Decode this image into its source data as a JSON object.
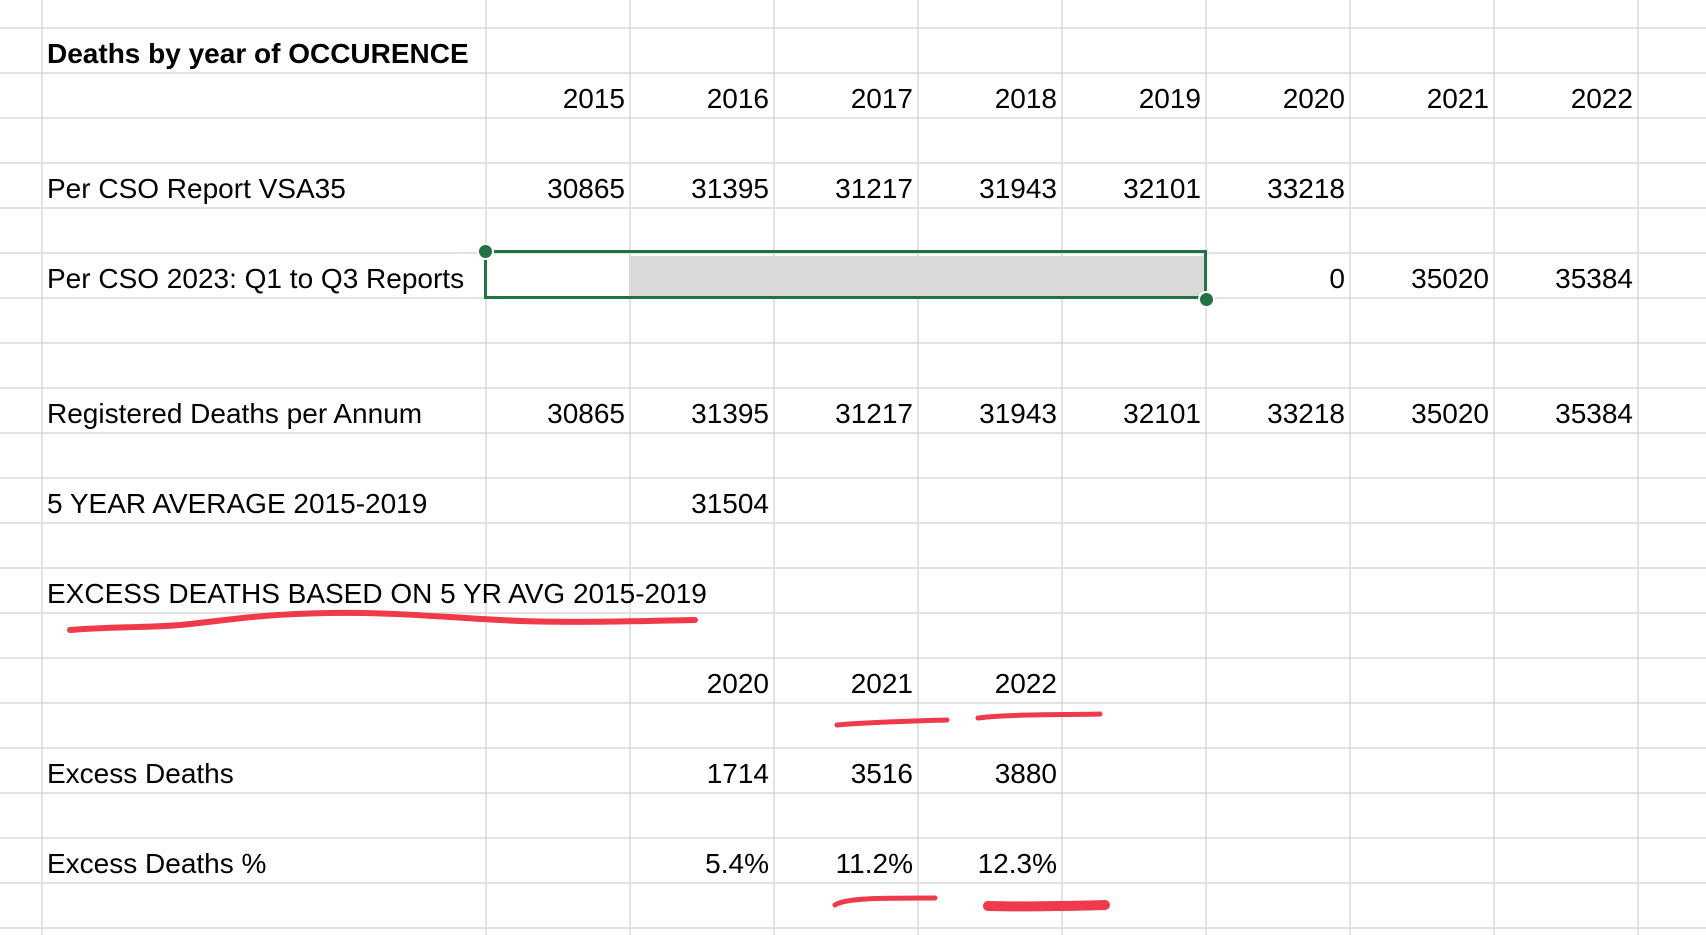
{
  "theme": {
    "grid_color": "#d9d9d9",
    "selection_color": "#217346",
    "selection_fill": "#d9d9d9",
    "annotation_color": "#ef3a4b",
    "text_color": "#000000"
  },
  "sheet": {
    "title": "Deaths by year of OCCURENCE",
    "years": [
      "2015",
      "2016",
      "2017",
      "2018",
      "2019",
      "2020",
      "2021",
      "2022"
    ],
    "per_cso_vsa35": {
      "label": "Per CSO Report VSA35",
      "values": [
        "30865",
        "31395",
        "31217",
        "31943",
        "32101",
        "33218"
      ]
    },
    "per_cso_2023": {
      "label": "Per CSO 2023: Q1 to Q3 Reports",
      "values": [
        "0",
        "35020",
        "35384"
      ]
    },
    "registered_deaths": {
      "label": "Registered Deaths per Annum",
      "values": [
        "30865",
        "31395",
        "31217",
        "31943",
        "32101",
        "33218",
        "35020",
        "35384"
      ]
    },
    "five_year_average": {
      "label": "5 YEAR AVERAGE 2015-2019",
      "value": "31504"
    },
    "excess_heading": "EXCESS DEATHS BASED ON 5 YR AVG 2015-2019",
    "excess_years": [
      "2020",
      "2021",
      "2022"
    ],
    "excess_deaths": {
      "label": "Excess Deaths",
      "values": [
        "1714",
        "3516",
        "3880"
      ]
    },
    "excess_deaths_pct": {
      "label": "Excess Deaths %",
      "values": [
        "5.4%",
        "11.2%",
        "12.3%"
      ]
    }
  }
}
